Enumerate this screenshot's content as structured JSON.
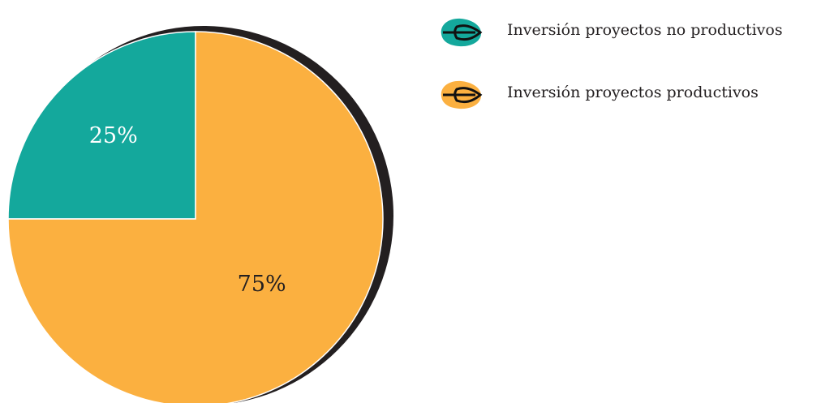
{
  "chart_data": {
    "type": "pie",
    "categories": [
      "Inversión proyectos no productivos",
      "Inversión proyectos productivos"
    ],
    "values": [
      25,
      75
    ],
    "value_labels": [
      "25%",
      "75%"
    ],
    "colors": [
      "#14a89c",
      "#fbb040"
    ],
    "label_colors": [
      "#ffffff",
      "#231f20"
    ]
  }
}
